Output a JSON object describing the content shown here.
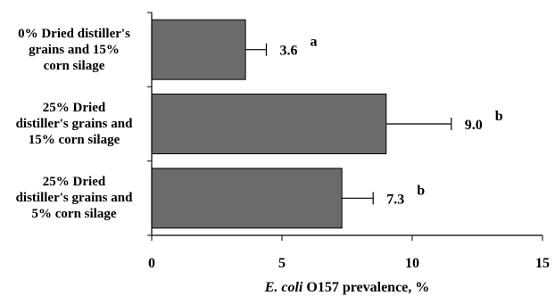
{
  "chart_data": {
    "type": "bar",
    "orientation": "horizontal",
    "categories": [
      "0% Dried distiller's grains and 15% corn silage",
      "25% Dried distiller's grains and 15% corn silage",
      "25% Dried distiller's grains and 5% corn silage"
    ],
    "category_label_lines": [
      [
        "0% Dried distiller's",
        "grains and 15%",
        "corn silage"
      ],
      [
        "25% Dried",
        "distiller's grains and",
        "15% corn silage"
      ],
      [
        "25% Dried",
        "distiller's grains and",
        "5% corn silage"
      ]
    ],
    "values": [
      3.6,
      9.0,
      7.3
    ],
    "value_labels": [
      "3.6",
      "9.0",
      "7.3"
    ],
    "error_upper": [
      4.4,
      11.5,
      8.5
    ],
    "significance_letters": [
      "a",
      "b",
      "b"
    ],
    "xlabel_italic": "E. coli",
    "xlabel_rest": " O157 prevalence, %",
    "xlim": [
      0,
      15
    ],
    "xticks": [
      "0",
      "5",
      "10",
      "15"
    ],
    "bar_color": "#6b6b6b",
    "grid": false,
    "legend": "none"
  }
}
